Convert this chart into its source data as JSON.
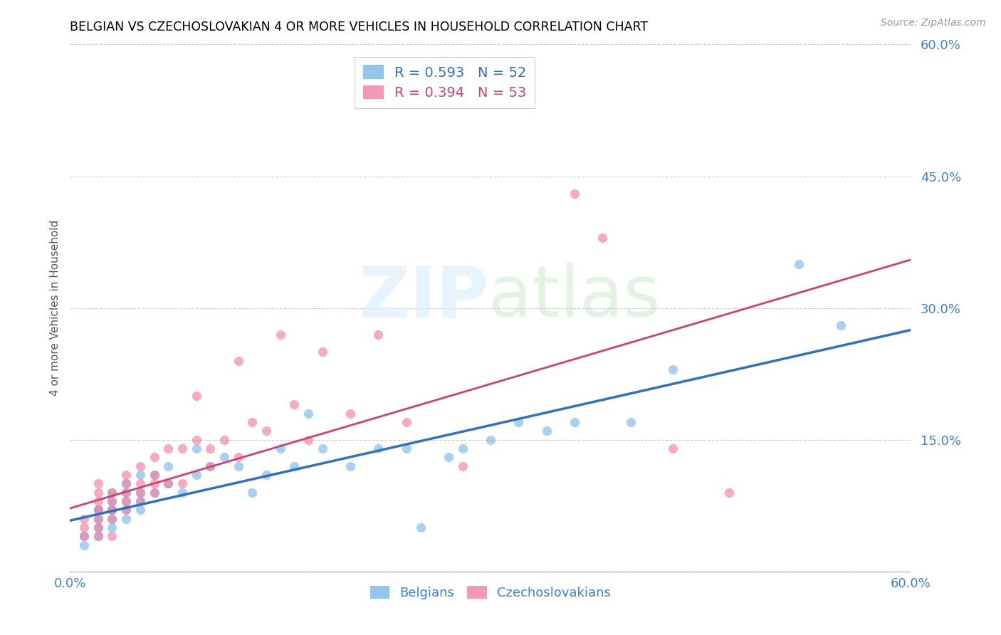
{
  "title": "BELGIAN VS CZECHOSLOVAKIAN 4 OR MORE VEHICLES IN HOUSEHOLD CORRELATION CHART",
  "source": "Source: ZipAtlas.com",
  "ylabel": "4 or more Vehicles in Household",
  "xlim": [
    0.0,
    0.6
  ],
  "ylim": [
    0.0,
    0.6
  ],
  "yticks": [
    0.0,
    0.15,
    0.3,
    0.45,
    0.6
  ],
  "ytick_labels": [
    "",
    "15.0%",
    "30.0%",
    "45.0%",
    "60.0%"
  ],
  "legend_entries": [
    {
      "label": "R = 0.593   N = 52"
    },
    {
      "label": "R = 0.394   N = 53"
    }
  ],
  "legend_labels": [
    "Belgians",
    "Czechoslovakians"
  ],
  "blue_color": "#7ab8e8",
  "pink_color": "#f080a0",
  "blue_line_color": "#3070c0",
  "pink_line_color": "#d04070",
  "axis_label_color": "#4080d0",
  "grid_color": "#cccccc",
  "belgians_x": [
    0.01,
    0.01,
    0.02,
    0.02,
    0.02,
    0.02,
    0.02,
    0.03,
    0.03,
    0.03,
    0.03,
    0.03,
    0.03,
    0.04,
    0.04,
    0.04,
    0.04,
    0.04,
    0.05,
    0.05,
    0.05,
    0.05,
    0.06,
    0.06,
    0.07,
    0.07,
    0.08,
    0.09,
    0.09,
    0.1,
    0.11,
    0.12,
    0.13,
    0.14,
    0.15,
    0.16,
    0.17,
    0.18,
    0.2,
    0.22,
    0.24,
    0.25,
    0.27,
    0.28,
    0.3,
    0.32,
    0.34,
    0.36,
    0.4,
    0.43,
    0.52,
    0.55
  ],
  "belgians_y": [
    0.03,
    0.04,
    0.04,
    0.05,
    0.06,
    0.07,
    0.07,
    0.05,
    0.06,
    0.07,
    0.07,
    0.08,
    0.09,
    0.06,
    0.07,
    0.08,
    0.09,
    0.1,
    0.07,
    0.08,
    0.09,
    0.11,
    0.09,
    0.11,
    0.1,
    0.12,
    0.09,
    0.11,
    0.14,
    0.12,
    0.13,
    0.12,
    0.09,
    0.11,
    0.14,
    0.12,
    0.18,
    0.14,
    0.12,
    0.14,
    0.14,
    0.05,
    0.13,
    0.14,
    0.15,
    0.17,
    0.16,
    0.17,
    0.17,
    0.23,
    0.35,
    0.28
  ],
  "czech_x": [
    0.01,
    0.01,
    0.01,
    0.02,
    0.02,
    0.02,
    0.02,
    0.02,
    0.02,
    0.02,
    0.03,
    0.03,
    0.03,
    0.03,
    0.03,
    0.04,
    0.04,
    0.04,
    0.04,
    0.04,
    0.05,
    0.05,
    0.05,
    0.05,
    0.06,
    0.06,
    0.06,
    0.06,
    0.07,
    0.07,
    0.08,
    0.08,
    0.09,
    0.09,
    0.1,
    0.1,
    0.11,
    0.12,
    0.12,
    0.13,
    0.14,
    0.15,
    0.16,
    0.17,
    0.18,
    0.2,
    0.22,
    0.24,
    0.28,
    0.36,
    0.38,
    0.43,
    0.47
  ],
  "czech_y": [
    0.04,
    0.05,
    0.06,
    0.04,
    0.05,
    0.06,
    0.07,
    0.08,
    0.09,
    0.1,
    0.04,
    0.06,
    0.07,
    0.08,
    0.09,
    0.07,
    0.08,
    0.09,
    0.1,
    0.11,
    0.08,
    0.09,
    0.1,
    0.12,
    0.09,
    0.1,
    0.11,
    0.13,
    0.1,
    0.14,
    0.1,
    0.14,
    0.15,
    0.2,
    0.12,
    0.14,
    0.15,
    0.13,
    0.24,
    0.17,
    0.16,
    0.27,
    0.19,
    0.15,
    0.25,
    0.18,
    0.27,
    0.17,
    0.12,
    0.43,
    0.38,
    0.14,
    0.09
  ],
  "blue_trend_x": [
    0.0,
    0.6
  ],
  "blue_trend_y": [
    0.058,
    0.275
  ],
  "pink_trend_x": [
    0.0,
    0.6
  ],
  "pink_trend_y": [
    0.072,
    0.355
  ]
}
